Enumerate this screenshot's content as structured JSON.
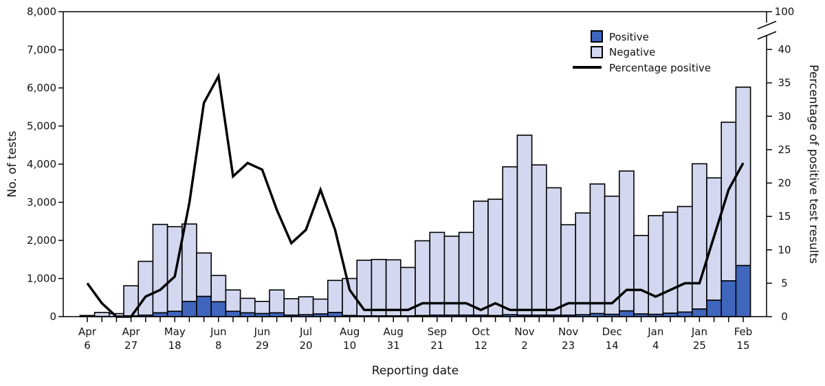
{
  "chart_data": {
    "type": "bar",
    "stacked": true,
    "xlabel": "Reporting date",
    "ylabel": "No. of tests",
    "y2label": "Percentage of positive test results",
    "ylim": [
      0,
      8000
    ],
    "yticks": [
      "0",
      "1,000",
      "2,000",
      "3,000",
      "4,000",
      "5,000",
      "6,000",
      "7,000",
      "8,000"
    ],
    "y2lim": [
      0,
      40
    ],
    "y2ticks": [
      "0",
      "5",
      "10",
      "15",
      "20",
      "25",
      "30",
      "35",
      "40"
    ],
    "y2break_top_label": "100",
    "grid": false,
    "legend_position": "top-right",
    "x_tick_labels": [
      {
        "index": 0,
        "line1": "Apr",
        "line2": "6"
      },
      {
        "index": 3,
        "line1": "Apr",
        "line2": "27"
      },
      {
        "index": 6,
        "line1": "May",
        "line2": "18"
      },
      {
        "index": 9,
        "line1": "Jun",
        "line2": "8"
      },
      {
        "index": 12,
        "line1": "Jun",
        "line2": "29"
      },
      {
        "index": 15,
        "line1": "Jul",
        "line2": "20"
      },
      {
        "index": 18,
        "line1": "Aug",
        "line2": "10"
      },
      {
        "index": 21,
        "line1": "Aug",
        "line2": "31"
      },
      {
        "index": 24,
        "line1": "Sep",
        "line2": "21"
      },
      {
        "index": 27,
        "line1": "Oct",
        "line2": "12"
      },
      {
        "index": 30,
        "line1": "Nov",
        "line2": "2"
      },
      {
        "index": 33,
        "line1": "Nov",
        "line2": "23"
      },
      {
        "index": 36,
        "line1": "Dec",
        "line2": "14"
      },
      {
        "index": 39,
        "line1": "Jan",
        "line2": "4"
      },
      {
        "index": 42,
        "line1": "Jan",
        "line2": "25"
      },
      {
        "index": 45,
        "line1": "Feb",
        "line2": "15"
      }
    ],
    "series": [
      {
        "name": "Positive",
        "color": "#3f65bd",
        "values": [
          10,
          5,
          0,
          20,
          40,
          100,
          140,
          400,
          530,
          390,
          140,
          100,
          80,
          100,
          40,
          50,
          70,
          110,
          30,
          20,
          20,
          20,
          20,
          30,
          40,
          40,
          40,
          40,
          30,
          50,
          40,
          40,
          40,
          40,
          50,
          80,
          60,
          150,
          70,
          60,
          90,
          120,
          200,
          430,
          940,
          1340
        ]
      },
      {
        "name": "Negative",
        "color": "#d3d7ef",
        "values": [
          20,
          105,
          80,
          790,
          1410,
          2320,
          2220,
          2030,
          1140,
          690,
          560,
          380,
          320,
          600,
          430,
          470,
          390,
          840,
          970,
          1460,
          1480,
          1470,
          1270,
          1960,
          2170,
          2070,
          2170,
          2990,
          3050,
          3880,
          4720,
          3940,
          3340,
          2370,
          2670,
          3400,
          3100,
          3670,
          2060,
          2590,
          2650,
          2770,
          3810,
          3210,
          4160,
          4680
        ]
      },
      {
        "name": "Percentage positive",
        "color": "#000000",
        "axis": "right",
        "values": [
          5,
          2,
          0,
          0,
          3,
          4,
          6,
          17,
          32,
          36,
          21,
          23,
          22,
          16,
          11,
          13,
          19,
          13,
          4,
          1,
          1,
          1,
          1,
          2,
          2,
          2,
          2,
          1,
          2,
          1,
          1,
          1,
          1,
          2,
          2,
          2,
          2,
          4,
          4,
          3,
          4,
          5,
          5,
          12,
          19,
          23
        ]
      }
    ]
  }
}
